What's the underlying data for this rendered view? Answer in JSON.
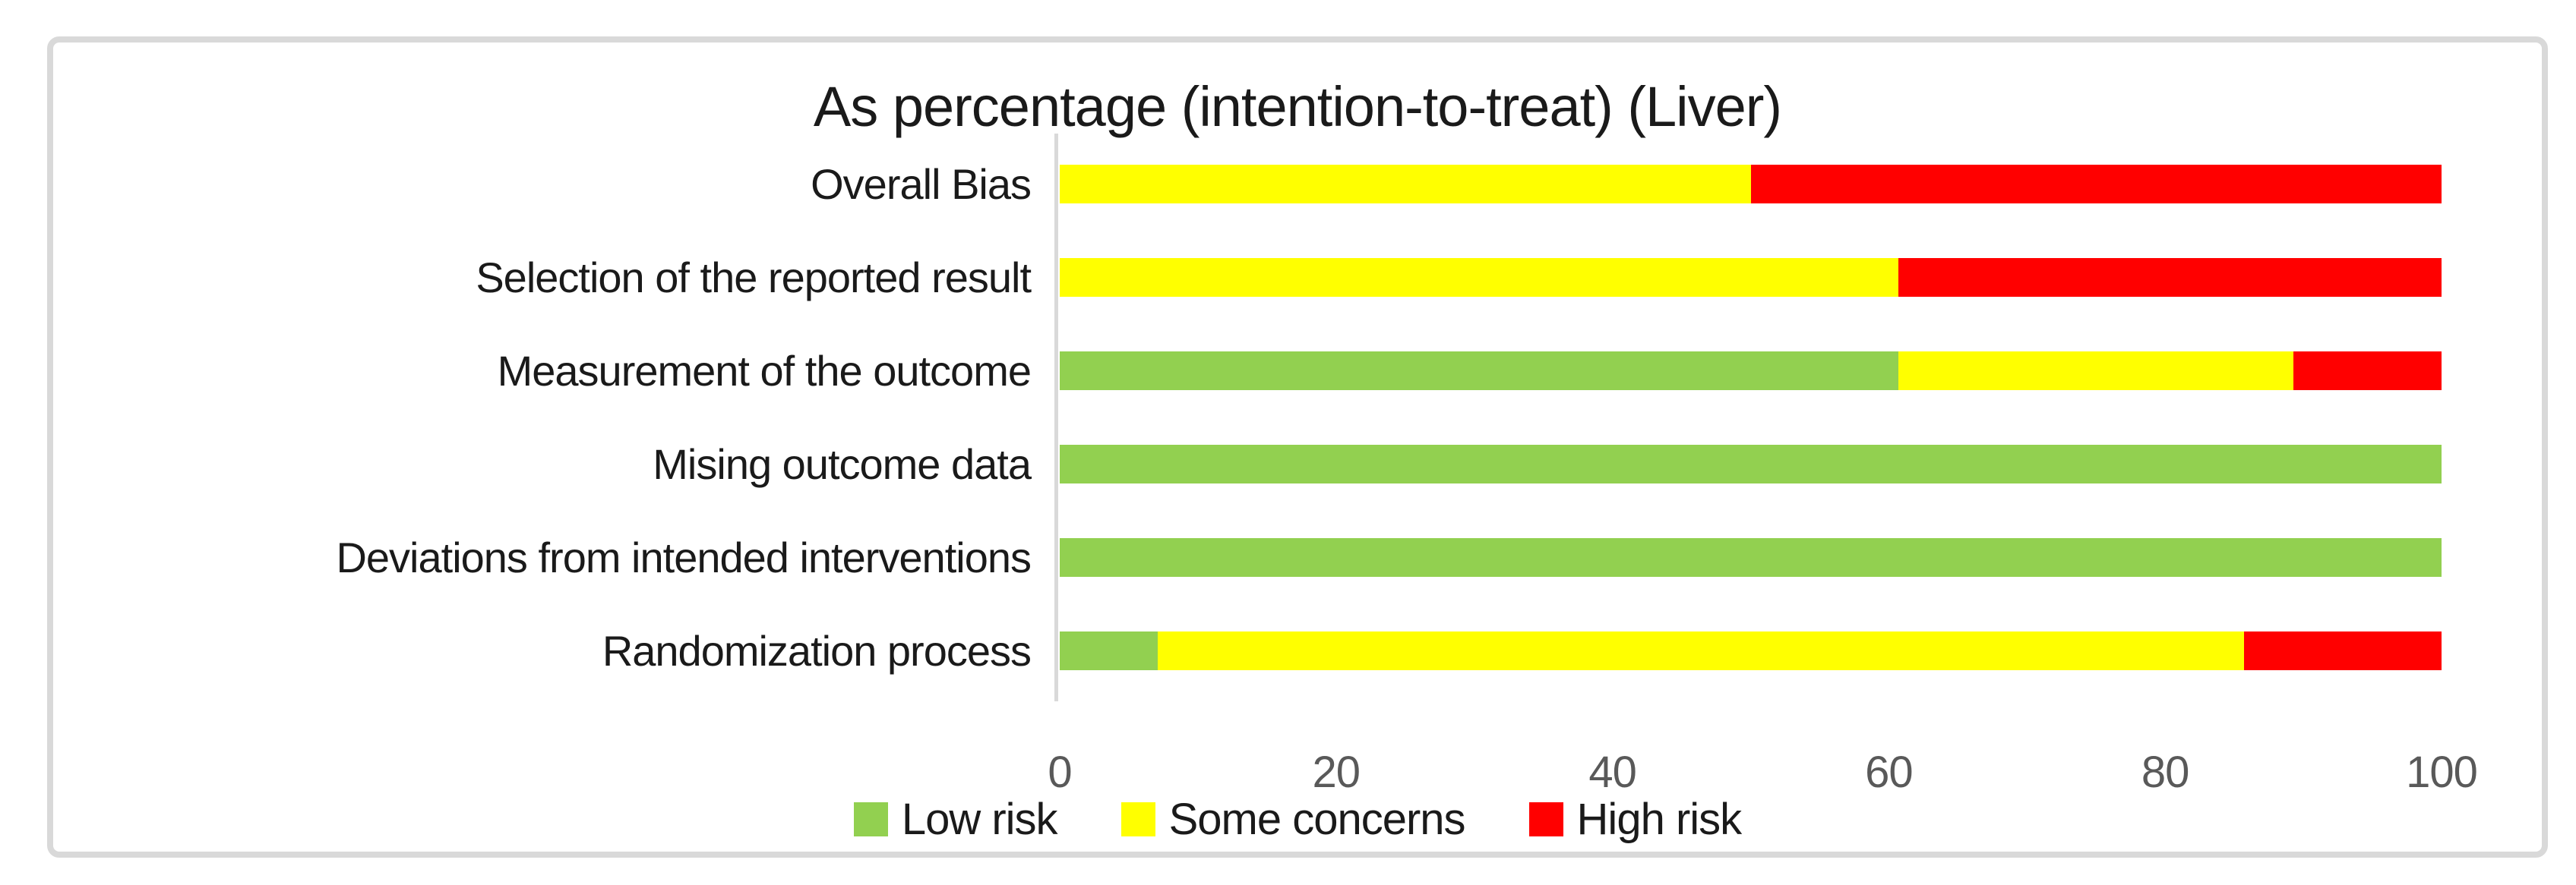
{
  "chart_data": {
    "type": "bar",
    "orientation": "horizontal",
    "stacked": true,
    "title": "As percentage (intention-to-treat) (Liver)",
    "categories_top_to_bottom": [
      "Overall Bias",
      "Selection of the reported result",
      "Measurement of the outcome",
      "Mising outcome data",
      "Deviations from intended interventions",
      "Randomization process"
    ],
    "series": [
      {
        "name": "Low risk",
        "color": "#92D050",
        "values": [
          0,
          0,
          60.7,
          100,
          100,
          7.1
        ]
      },
      {
        "name": "Some concerns",
        "color": "#FFFF00",
        "values": [
          50,
          60.7,
          28.6,
          0,
          0,
          78.6
        ]
      },
      {
        "name": "High risk",
        "color": "#FF0000",
        "values": [
          50,
          39.3,
          10.7,
          0,
          0,
          14.3
        ]
      }
    ],
    "x_axis": {
      "min": 0,
      "max": 100,
      "ticks": [
        0,
        20,
        40,
        60,
        80,
        100
      ]
    },
    "legend_position": "bottom",
    "grid": false
  },
  "colors": {
    "low_risk": "#92D050",
    "some_concerns": "#FFFF00",
    "high_risk": "#FF0000",
    "tick_text": "#595959",
    "axis_line": "#d9d9d9",
    "chart_border": "#d9d9d9",
    "text": "#1a1a1a"
  }
}
